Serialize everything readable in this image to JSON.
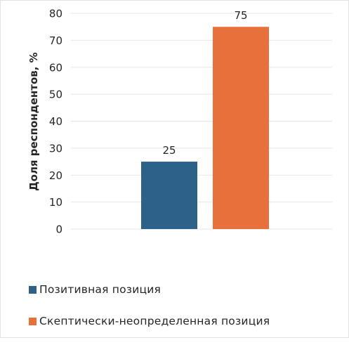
{
  "chart_data": {
    "type": "bar",
    "title": "",
    "xlabel": "",
    "ylabel": "Доля респондентов, %",
    "ylim": [
      0,
      80
    ],
    "yticks": [
      0,
      10,
      20,
      30,
      40,
      50,
      60,
      70,
      80
    ],
    "grid": true,
    "legend_position": "bottom-left",
    "categories": [
      "Позитивная позиция",
      "Скептически-неопределенная позиция"
    ],
    "values": [
      25,
      75
    ],
    "data_labels": [
      "25",
      "75"
    ],
    "colors": [
      "#2E6189",
      "#E8713B"
    ]
  }
}
